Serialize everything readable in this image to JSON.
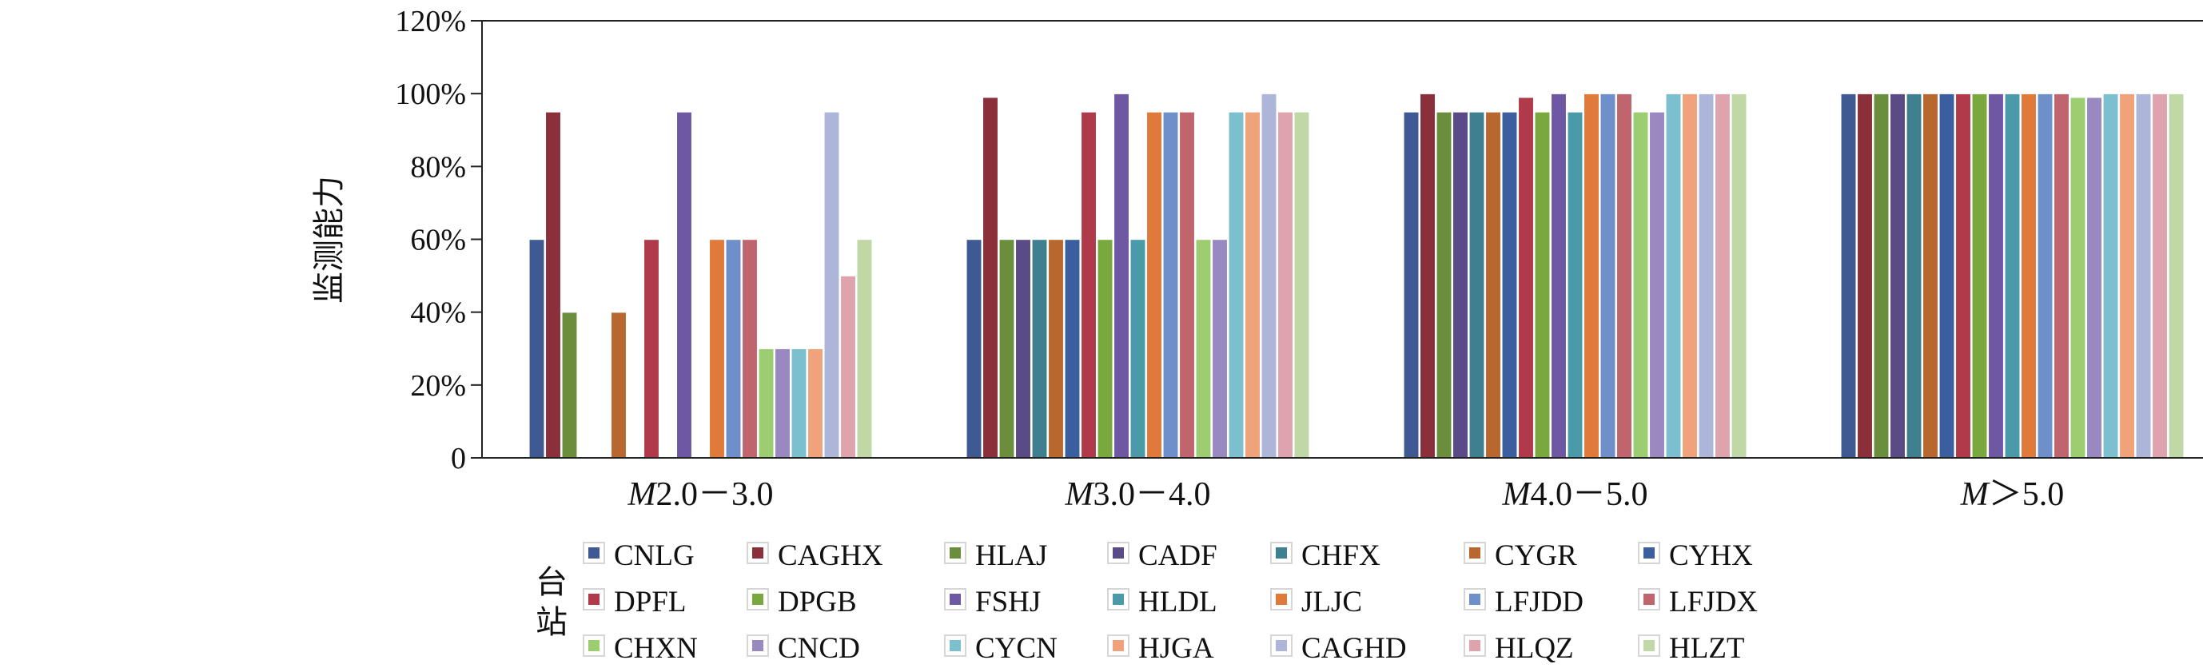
{
  "chart_data": {
    "type": "bar",
    "ylabel": "监测能力",
    "y_ticks": [
      "0",
      "20%",
      "40%",
      "60%",
      "80%",
      "100%",
      "120%"
    ],
    "ylim": [
      0,
      120
    ],
    "categories": [
      {
        "label": "M2.0－3.0",
        "italic": "M",
        "rest": "2.0－3.0"
      },
      {
        "label": "M3.0－4.0",
        "italic": "M",
        "rest": "3.0－4.0"
      },
      {
        "label": "M4.0－5.0",
        "italic": "M",
        "rest": "4.0－5.0"
      },
      {
        "label": "M＞5.0",
        "italic": "M",
        "rest": "＞5.0"
      }
    ],
    "legend_title": "台站",
    "legend_position": "bottom",
    "grid": false,
    "series": [
      {
        "name": "CNLG",
        "color": "#3f5a93",
        "values": [
          60,
          60,
          95,
          100
        ]
      },
      {
        "name": "CAGHX",
        "color": "#8b2f3a",
        "values": [
          95,
          99,
          100,
          100
        ]
      },
      {
        "name": "HLAJ",
        "color": "#6b8e3d",
        "values": [
          40,
          60,
          95,
          100
        ]
      },
      {
        "name": "CADF",
        "color": "#5a4a85",
        "values": [
          0,
          60,
          95,
          100
        ]
      },
      {
        "name": "CHFX",
        "color": "#3f8090",
        "values": [
          0,
          60,
          95,
          100
        ]
      },
      {
        "name": "CYGR",
        "color": "#b8682e",
        "values": [
          40,
          60,
          95,
          100
        ]
      },
      {
        "name": "CYHX",
        "color": "#3b5f9e",
        "values": [
          0,
          60,
          95,
          100
        ]
      },
      {
        "name": "DPFL",
        "color": "#b03a4a",
        "values": [
          60,
          95,
          99,
          100
        ]
      },
      {
        "name": "DPGB",
        "color": "#79a83f",
        "values": [
          0,
          60,
          95,
          100
        ]
      },
      {
        "name": "FSHJ",
        "color": "#6f58a3",
        "values": [
          95,
          100,
          100,
          100
        ]
      },
      {
        "name": "HLDL",
        "color": "#4a9aaa",
        "values": [
          0,
          60,
          95,
          100
        ]
      },
      {
        "name": "JLJC",
        "color": "#e07a3a",
        "values": [
          60,
          95,
          100,
          100
        ]
      },
      {
        "name": "LFJDD",
        "color": "#6f8fca",
        "values": [
          60,
          95,
          100,
          100
        ]
      },
      {
        "name": "LFJDX",
        "color": "#c0646e",
        "values": [
          60,
          95,
          100,
          100
        ]
      },
      {
        "name": "CHXN",
        "color": "#9ccd70",
        "values": [
          30,
          60,
          95,
          99
        ]
      },
      {
        "name": "CNCD",
        "color": "#9a88c0",
        "values": [
          30,
          60,
          95,
          99
        ]
      },
      {
        "name": "CYCN",
        "color": "#7cc0d0",
        "values": [
          30,
          95,
          100,
          100
        ]
      },
      {
        "name": "HJGA",
        "color": "#f0a27a",
        "values": [
          30,
          95,
          100,
          100
        ]
      },
      {
        "name": "CAGHD",
        "color": "#adb6d8",
        "values": [
          95,
          100,
          100,
          100
        ]
      },
      {
        "name": "HLQZ",
        "color": "#dfa3ae",
        "values": [
          50,
          95,
          100,
          100
        ]
      },
      {
        "name": "HLZT",
        "color": "#bfd8a6",
        "values": [
          60,
          95,
          100,
          100
        ]
      }
    ]
  }
}
